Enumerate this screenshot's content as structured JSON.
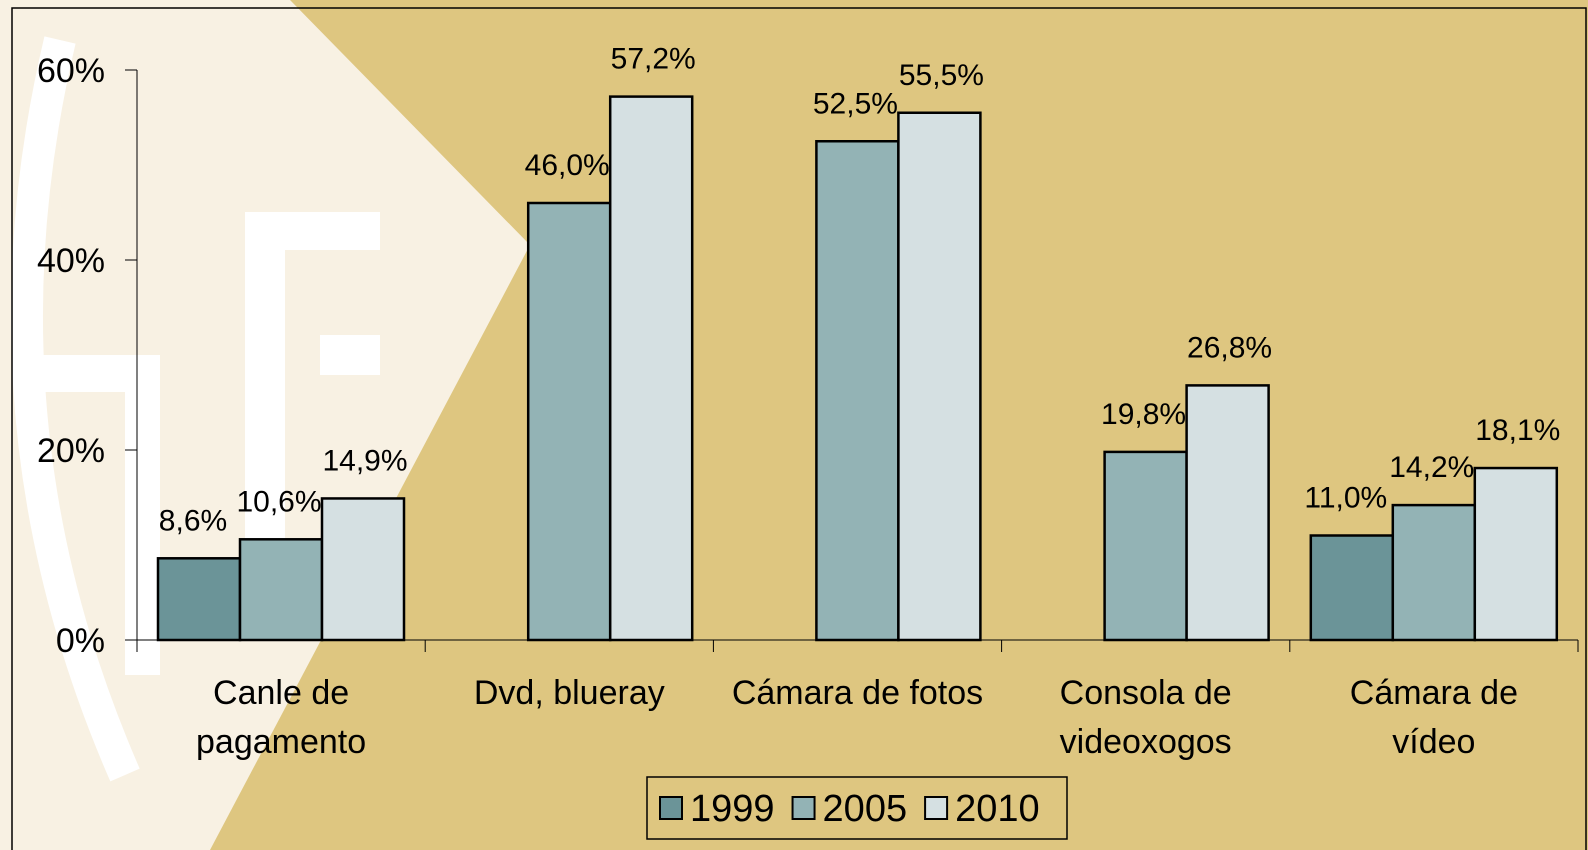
{
  "chart_data": {
    "type": "bar",
    "categories": [
      "Canle de pagamento",
      "Dvd, blueray",
      "Cámara de fotos",
      "Consola de videoxogos",
      "Cámara de vídeo"
    ],
    "series": [
      {
        "name": "1999",
        "color": "#6b9498",
        "values": [
          8.6,
          null,
          null,
          null,
          11.0
        ],
        "value_labels": [
          "8,6%",
          null,
          null,
          null,
          "11,0%"
        ]
      },
      {
        "name": "2005",
        "color": "#93b3b5",
        "values": [
          10.6,
          46.0,
          52.5,
          19.8,
          14.2
        ],
        "value_labels": [
          "10,6%",
          "46,0%",
          "52,5%",
          "19,8%",
          "14,2%"
        ]
      },
      {
        "name": "2010",
        "color": "#d5e0e2",
        "values": [
          14.9,
          57.2,
          55.5,
          26.8,
          18.1
        ],
        "value_labels": [
          "14,9%",
          "57,2%",
          "55,5%",
          "26,8%",
          "18,1%"
        ]
      }
    ],
    "ylim": [
      0,
      60
    ],
    "yticks": [
      {
        "value": 0,
        "label": "0%"
      },
      {
        "value": 20,
        "label": "20%"
      },
      {
        "value": 40,
        "label": "40%"
      },
      {
        "value": 60,
        "label": "60%"
      }
    ],
    "legend": "bottom"
  }
}
